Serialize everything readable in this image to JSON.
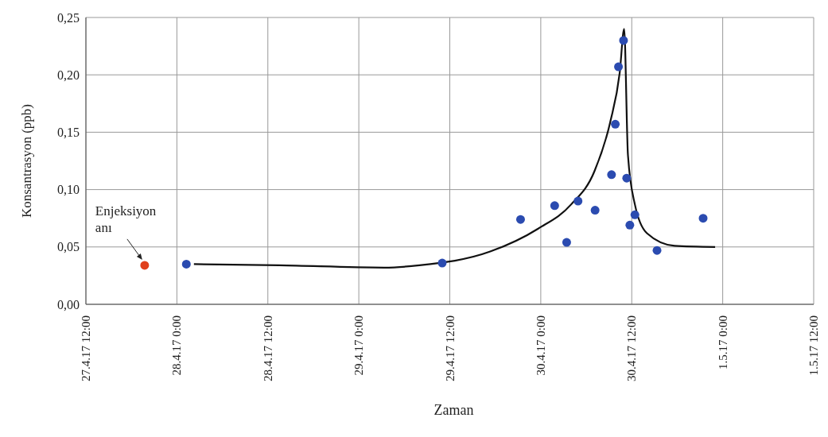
{
  "chart_data": {
    "type": "scatter",
    "xlabel": "Zaman",
    "ylabel": "Konsantrasyon (ppb)",
    "xlim": [
      "--04-27T12:00",
      "--05-01T12:00"
    ],
    "xticks": [
      {
        "value": "--04-27T12:00",
        "label": "27.4.17 12:00"
      },
      {
        "value": "--04-28T00:00",
        "label": "28.4.17 0:00"
      },
      {
        "value": "--04-28T12:00",
        "label": "28.4.17 12:00"
      },
      {
        "value": "--04-29T00:00",
        "label": "29.4.17 0:00"
      },
      {
        "value": "--04-29T12:00",
        "label": "29.4.17 12:00"
      },
      {
        "value": "--04-30T00:00",
        "label": "30.4.17 0:00"
      },
      {
        "value": "--04-30T12:00",
        "label": "30.4.17 12:00"
      },
      {
        "value": "--05-01T00:00",
        "label": "1.5.17 0:00"
      },
      {
        "value": "--05-01T12:00",
        "label": "1.5.17 12:00"
      }
    ],
    "ylim": [
      0,
      0.25
    ],
    "yticks": [
      {
        "value": 0,
        "label": "0,00"
      },
      {
        "value": 0.05,
        "label": "0,05"
      },
      {
        "value": 0.1,
        "label": "0,10"
      },
      {
        "value": 0.15,
        "label": "0,15"
      },
      {
        "value": 0.2,
        "label": "0,20"
      },
      {
        "value": 0.25,
        "label": "0,25"
      }
    ],
    "grid": true,
    "legend": false,
    "marker": "circle",
    "series": [
      {
        "color": "#e0401c",
        "x": [
          "--04-27T19:45"
        ],
        "values": [
          0.034
        ]
      },
      {
        "color": "#2b4bb0",
        "x": [
          "--04-28T01:15",
          "--04-29T11:00",
          "--04-29T21:20",
          "--04-30T01:50",
          "--04-30T03:25",
          "--04-30T04:55",
          "--04-30T07:10",
          "--04-30T09:20",
          "--04-30T09:50",
          "--04-30T10:15",
          "--04-30T10:55",
          "--04-30T11:20",
          "--04-30T11:45",
          "--04-30T12:25",
          "--04-30T15:20",
          "--04-30T21:25"
        ],
        "values": [
          0.035,
          0.036,
          0.074,
          0.086,
          0.054,
          0.09,
          0.082,
          0.113,
          0.157,
          0.207,
          0.23,
          0.11,
          0.069,
          0.078,
          0.047,
          0.075
        ]
      },
      {
        "type": "line",
        "color": "#111111",
        "marker": "none",
        "line_style": "solid",
        "x": [
          "--04-28T02:15",
          "--04-28T13:30",
          "--04-29T03:20",
          "--04-29T08:00",
          "--04-29T17:20",
          "--04-29T23:40",
          "--04-30T04:00",
          "--04-30T07:05",
          "--04-30T09:10",
          "--04-30T10:25",
          "--04-30T11:00",
          "--04-30T11:30",
          "--04-30T12:25",
          "--04-30T14:00",
          "--04-30T17:40",
          "--04-30T23:00"
        ],
        "values": [
          0.035,
          0.034,
          0.032,
          0.034,
          0.046,
          0.066,
          0.087,
          0.116,
          0.159,
          0.202,
          0.24,
          0.13,
          0.087,
          0.062,
          0.051,
          0.05
        ]
      }
    ],
    "annotations": [
      {
        "text": "Enjeksiyon anı",
        "x": "--04-27T19:45",
        "y": 0.034
      }
    ]
  }
}
